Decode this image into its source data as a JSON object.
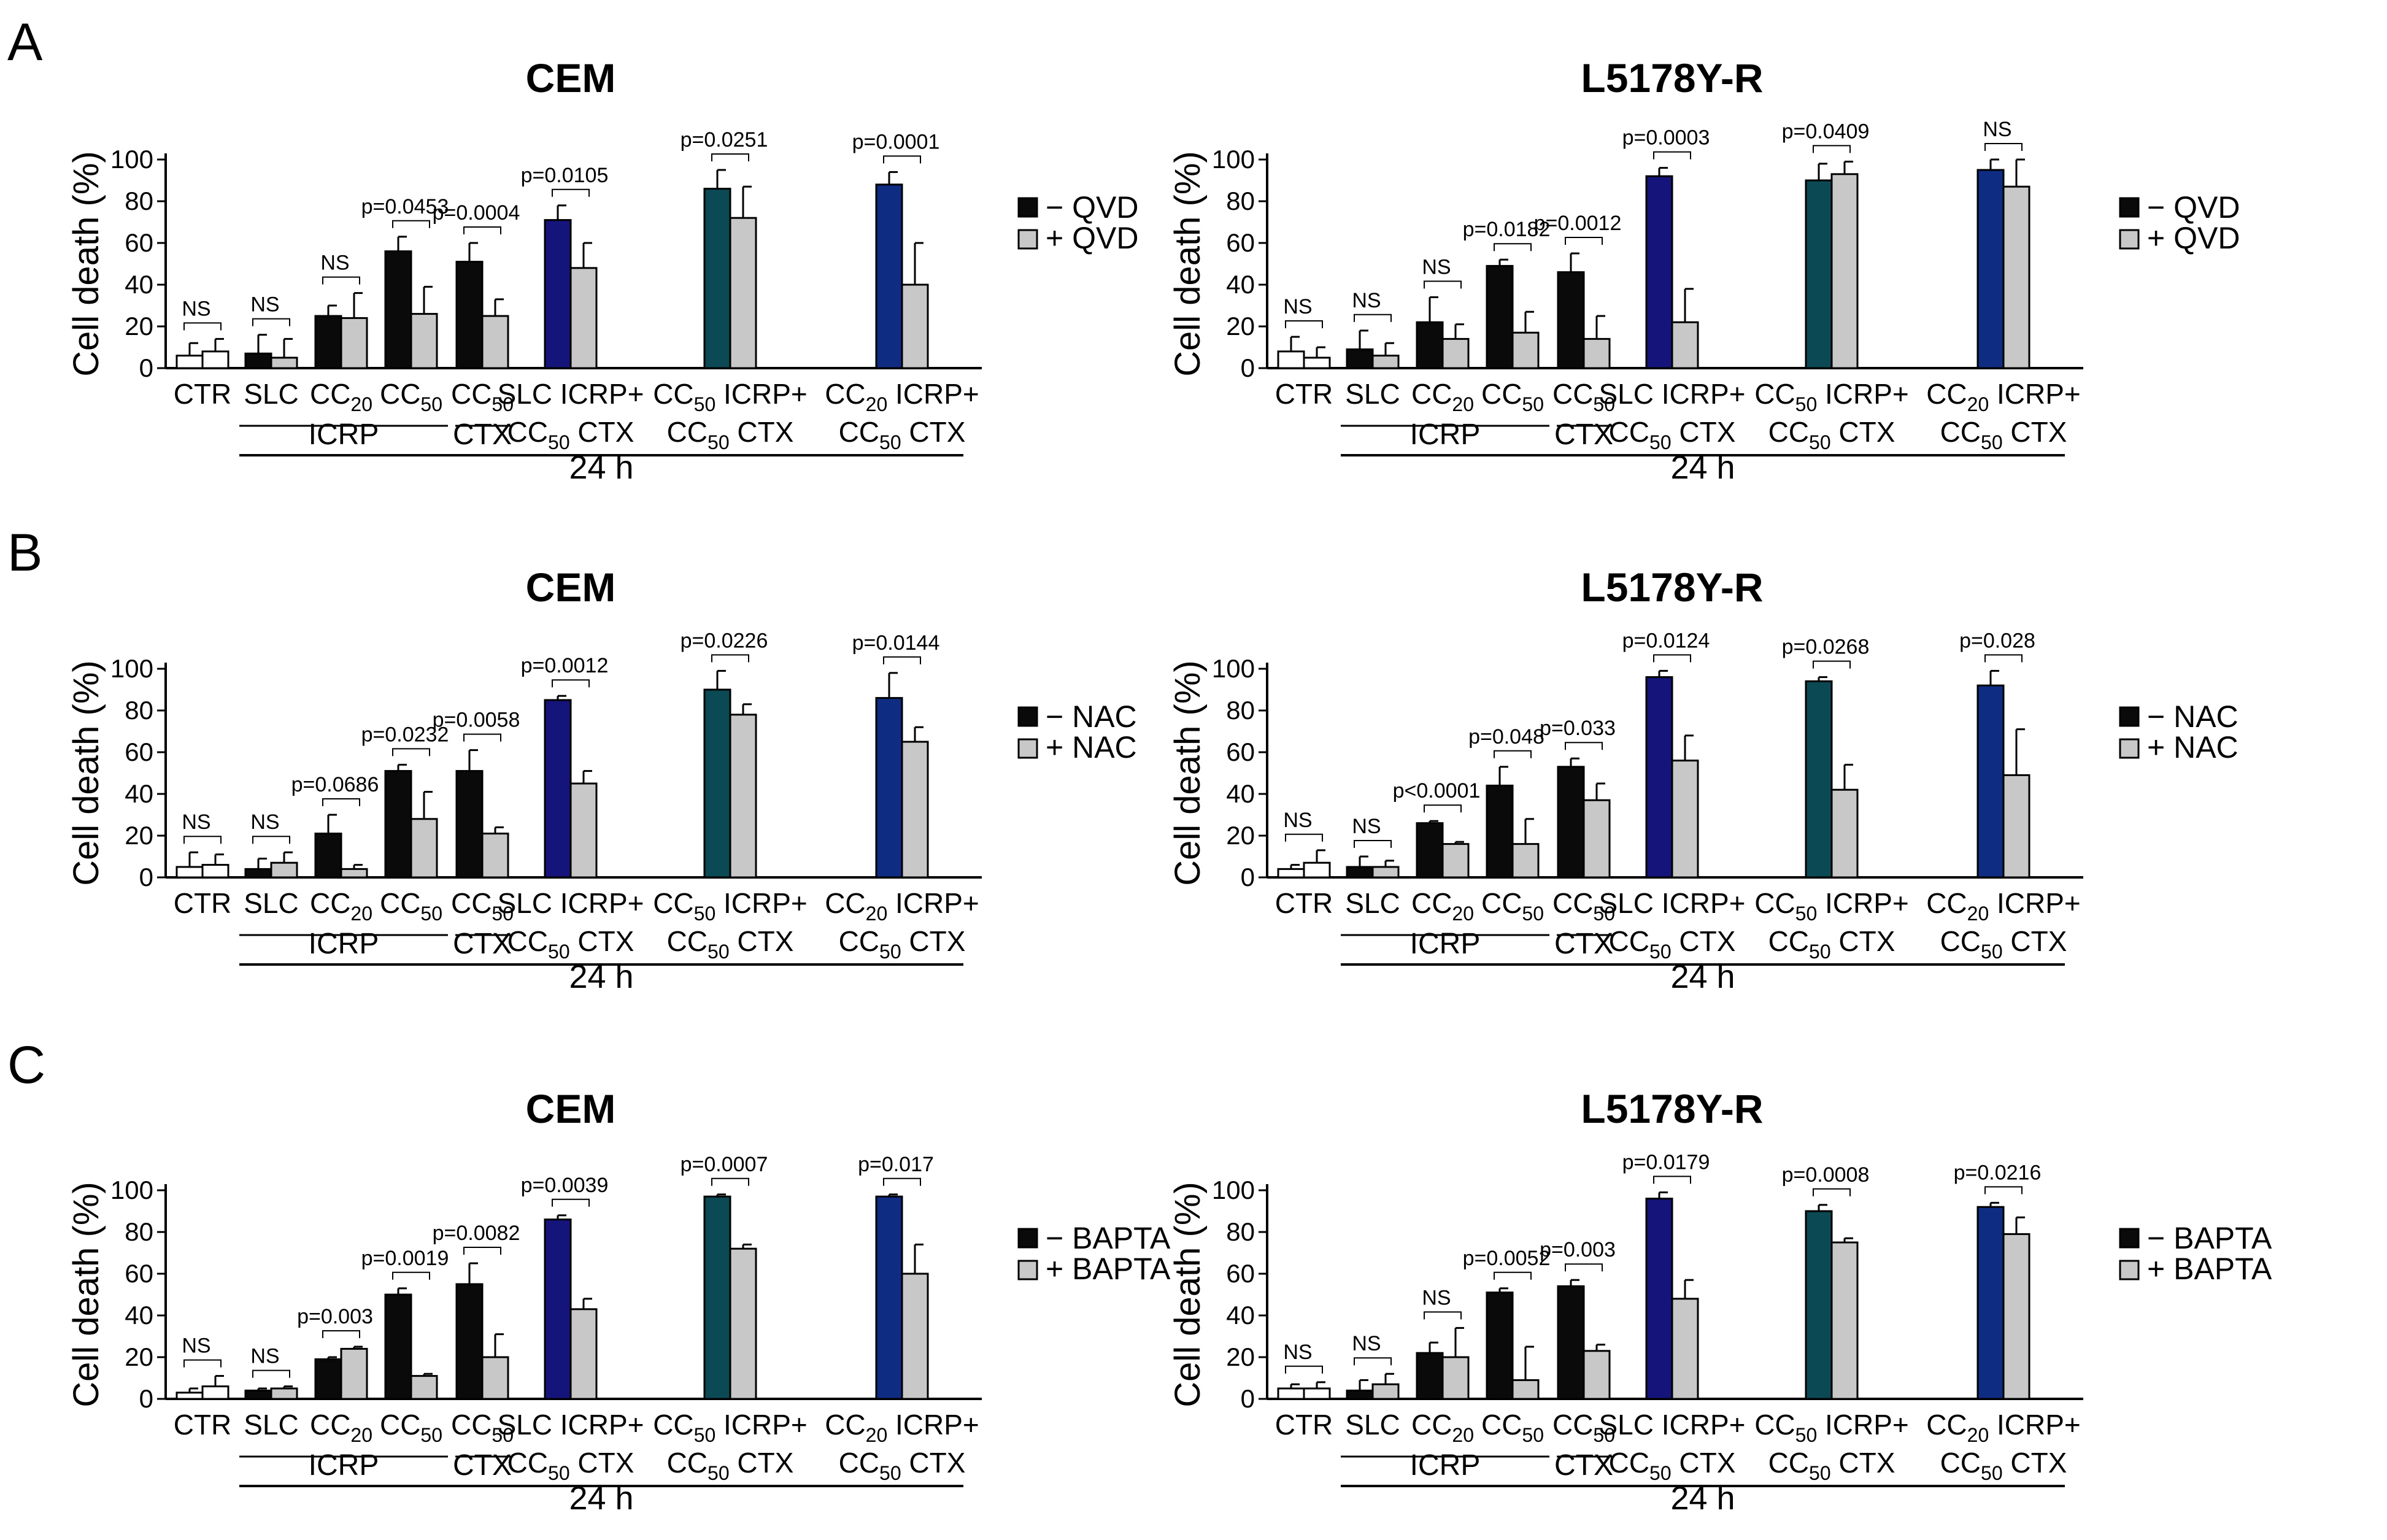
{
  "figure_labels": [
    "A",
    "B",
    "C"
  ],
  "colors": {
    "ctr": "#ffffff",
    "black": "#0a0a0a",
    "gray": "#c8c8c8",
    "slc": "#14147a",
    "cc50ctx": "#0b4a55",
    "cc20ctx": "#0d2c82"
  },
  "chart_data": [
    {
      "id": "A-CEM",
      "type": "bar",
      "row": "A",
      "title": "CEM",
      "ylabel": "Cell death (%)",
      "ylim": [
        0,
        100
      ],
      "yticks": [
        0,
        20,
        40,
        60,
        80,
        100
      ],
      "series": [
        {
          "name": "− QVD",
          "values": [
            6,
            7,
            25,
            56,
            51,
            71,
            86,
            88
          ],
          "errors": [
            6,
            9,
            5,
            7,
            9,
            7,
            9,
            6
          ]
        },
        {
          "name": "+ QVD",
          "values": [
            8,
            5,
            24,
            26,
            25,
            48,
            72,
            40
          ],
          "errors": [
            6,
            9,
            12,
            13,
            8,
            12,
            15,
            20
          ]
        }
      ],
      "first_bar_colors": [
        "ctr",
        "black",
        "black",
        "black",
        "black",
        "slc",
        "cc50ctx",
        "cc20ctx"
      ],
      "second_bar_colors": [
        "ctr",
        "gray",
        "gray",
        "gray",
        "gray",
        "gray",
        "gray",
        "gray"
      ],
      "annotations": [
        "NS",
        "NS",
        "NS",
        "p=0.0453",
        "p=0.0004",
        "p=0.0105",
        "p=0.0251",
        "p=0.0001"
      ],
      "legend": {
        "minus": "− QVD",
        "plus": "+ QVD"
      },
      "xlabels": {
        "ctr": "CTR",
        "slc": "SLC",
        "cc20": "CC",
        "cc20_sub": "20",
        "cc50": "CC",
        "cc50_sub": "50",
        "ctx_top": "CC",
        "ctx_top_sub": "50",
        "icrp": "ICRP",
        "ctx": "CTX",
        "c1_top": "SLC ICRP+",
        "c1_bot": "CC",
        "c1_bot_sub": "50",
        "c1_bot_rest": " CTX",
        "c2_top_a": "CC",
        "c2_top_a_sub": "50",
        "c2_top_b": " ICRP+",
        "c2_bot": "CC",
        "c2_bot_sub": "50",
        "c2_bot_rest": " CTX",
        "c3_top_a": "CC",
        "c3_top_a_sub": "20",
        "c3_top_b": " ICRP+",
        "c3_bot": "CC",
        "c3_bot_sub": "50",
        "c3_bot_rest": " CTX",
        "time": "24 h"
      }
    },
    {
      "id": "A-L5178Y-R",
      "type": "bar",
      "row": "A",
      "title": "L5178Y-R",
      "ylabel": "Cell death (%)",
      "ylim": [
        0,
        100
      ],
      "yticks": [
        0,
        20,
        40,
        60,
        80,
        100
      ],
      "series": [
        {
          "name": "− QVD",
          "values": [
            8,
            9,
            22,
            49,
            46,
            92,
            90,
            95
          ],
          "errors": [
            7,
            9,
            12,
            3,
            9,
            4,
            8,
            5
          ]
        },
        {
          "name": "+ QVD",
          "values": [
            5,
            6,
            14,
            17,
            14,
            22,
            93,
            87
          ],
          "errors": [
            5,
            6,
            7,
            10,
            11,
            16,
            6,
            15
          ]
        }
      ],
      "first_bar_colors": [
        "ctr",
        "black",
        "black",
        "black",
        "black",
        "slc",
        "cc50ctx",
        "cc20ctx"
      ],
      "second_bar_colors": [
        "ctr",
        "gray",
        "gray",
        "gray",
        "gray",
        "gray",
        "gray",
        "gray"
      ],
      "annotations": [
        "NS",
        "NS",
        "NS",
        "p=0.0182",
        "p=0.0012",
        "p=0.0003",
        "p=0.0409",
        "NS"
      ],
      "legend": {
        "minus": "− QVD",
        "plus": "+ QVD"
      },
      "xlabels": {
        "ctr": "CTR",
        "slc": "SLC",
        "cc20": "CC",
        "cc20_sub": "20",
        "cc50": "CC",
        "cc50_sub": "50",
        "ctx_top": "CC",
        "ctx_top_sub": "50",
        "icrp": "ICRP",
        "ctx": "CTX",
        "c1_top": "SLC ICRP+",
        "c1_bot": "CC",
        "c1_bot_sub": "50",
        "c1_bot_rest": " CTX",
        "c2_top_a": "CC",
        "c2_top_a_sub": "50",
        "c2_top_b": " ICRP+",
        "c2_bot": "CC",
        "c2_bot_sub": "50",
        "c2_bot_rest": " CTX",
        "c3_top_a": "CC",
        "c3_top_a_sub": "20",
        "c3_top_b": " ICRP+",
        "c3_bot": "CC",
        "c3_bot_sub": "50",
        "c3_bot_rest": " CTX",
        "time": "24 h"
      }
    },
    {
      "id": "B-CEM",
      "type": "bar",
      "row": "B",
      "title": "CEM",
      "ylabel": "Cell death (%)",
      "ylim": [
        0,
        100
      ],
      "yticks": [
        0,
        20,
        40,
        60,
        80,
        100
      ],
      "series": [
        {
          "name": "− NAC",
          "values": [
            5,
            4,
            21,
            51,
            51,
            85,
            90,
            86
          ],
          "errors": [
            7,
            5,
            9,
            3,
            10,
            2,
            9,
            12
          ]
        },
        {
          "name": "+ NAC",
          "values": [
            6,
            7,
            4,
            28,
            21,
            45,
            78,
            65
          ],
          "errors": [
            5,
            5,
            2,
            13,
            3,
            6,
            5,
            7
          ]
        }
      ],
      "first_bar_colors": [
        "ctr",
        "black",
        "black",
        "black",
        "black",
        "slc",
        "cc50ctx",
        "cc20ctx"
      ],
      "second_bar_colors": [
        "ctr",
        "gray",
        "gray",
        "gray",
        "gray",
        "gray",
        "gray",
        "gray"
      ],
      "annotations": [
        "NS",
        "NS",
        "p=0.0686",
        "p=0.0232",
        "p=0.0058",
        "p=0.0012",
        "p=0.0226",
        "p=0.0144"
      ],
      "legend": {
        "minus": "− NAC",
        "plus": "+ NAC"
      },
      "xlabels": {
        "ctr": "CTR",
        "slc": "SLC",
        "cc20": "CC",
        "cc20_sub": "20",
        "cc50": "CC",
        "cc50_sub": "50",
        "ctx_top": "CC",
        "ctx_top_sub": "50",
        "icrp": "ICRP",
        "ctx": "CTX",
        "c1_top": "SLC ICRP+",
        "c1_bot": "CC",
        "c1_bot_sub": "50",
        "c1_bot_rest": " CTX",
        "c2_top_a": "CC",
        "c2_top_a_sub": "50",
        "c2_top_b": " ICRP+",
        "c2_bot": "CC",
        "c2_bot_sub": "50",
        "c2_bot_rest": " CTX",
        "c3_top_a": "CC",
        "c3_top_a_sub": "20",
        "c3_top_b": " ICRP+",
        "c3_bot": "CC",
        "c3_bot_sub": "50",
        "c3_bot_rest": " CTX",
        "time": "24 h"
      }
    },
    {
      "id": "B-L5178Y-R",
      "type": "bar",
      "row": "B",
      "title": "L5178Y-R",
      "ylabel": "Cell death (%)",
      "ylim": [
        0,
        100
      ],
      "yticks": [
        0,
        20,
        40,
        60,
        80,
        100
      ],
      "series": [
        {
          "name": "− NAC",
          "values": [
            4,
            5,
            26,
            44,
            53,
            96,
            94,
            92
          ],
          "errors": [
            2,
            5,
            1,
            9,
            4,
            3,
            2,
            7
          ]
        },
        {
          "name": "+ NAC",
          "values": [
            7,
            5,
            16,
            16,
            37,
            56,
            42,
            49
          ],
          "errors": [
            6,
            3,
            1,
            12,
            8,
            12,
            12,
            22
          ]
        }
      ],
      "first_bar_colors": [
        "ctr",
        "black",
        "black",
        "black",
        "black",
        "slc",
        "cc50ctx",
        "cc20ctx"
      ],
      "second_bar_colors": [
        "ctr",
        "gray",
        "gray",
        "gray",
        "gray",
        "gray",
        "gray",
        "gray"
      ],
      "annotations": [
        "NS",
        "NS",
        "p<0.0001",
        "p=0.048",
        "p=0.033",
        "p=0.0124",
        "p=0.0268",
        "p=0.028"
      ],
      "legend": {
        "minus": "− NAC",
        "plus": "+ NAC"
      },
      "xlabels": {
        "ctr": "CTR",
        "slc": "SLC",
        "cc20": "CC",
        "cc20_sub": "20",
        "cc50": "CC",
        "cc50_sub": "50",
        "ctx_top": "CC",
        "ctx_top_sub": "50",
        "icrp": "ICRP",
        "ctx": "CTX",
        "c1_top": "SLC ICRP+",
        "c1_bot": "CC",
        "c1_bot_sub": "50",
        "c1_bot_rest": " CTX",
        "c2_top_a": "CC",
        "c2_top_a_sub": "50",
        "c2_top_b": " ICRP+",
        "c2_bot": "CC",
        "c2_bot_sub": "50",
        "c2_bot_rest": " CTX",
        "c3_top_a": "CC",
        "c3_top_a_sub": "20",
        "c3_top_b": " ICRP+",
        "c3_bot": "CC",
        "c3_bot_sub": "50",
        "c3_bot_rest": " CTX",
        "time": "24 h"
      }
    },
    {
      "id": "C-CEM",
      "type": "bar",
      "row": "C",
      "title": "CEM",
      "ylabel": "Cell death (%)",
      "ylim": [
        0,
        100
      ],
      "yticks": [
        0,
        20,
        40,
        60,
        80,
        100
      ],
      "series": [
        {
          "name": "− BAPTA",
          "values": [
            3,
            4,
            19,
            50,
            55,
            86,
            97,
            97
          ],
          "errors": [
            2,
            1,
            1,
            3,
            10,
            2,
            1,
            1
          ]
        },
        {
          "name": "+ BAPTA",
          "values": [
            6,
            5,
            24,
            11,
            20,
            43,
            72,
            60
          ],
          "errors": [
            5,
            1,
            1,
            1,
            11,
            5,
            2,
            14
          ]
        }
      ],
      "first_bar_colors": [
        "ctr",
        "black",
        "black",
        "black",
        "black",
        "slc",
        "cc50ctx",
        "cc20ctx"
      ],
      "second_bar_colors": [
        "ctr",
        "gray",
        "gray",
        "gray",
        "gray",
        "gray",
        "gray",
        "gray"
      ],
      "annotations": [
        "NS",
        "NS",
        "p=0.003",
        "p=0.0019",
        "p=0.0082",
        "p=0.0039",
        "p=0.0007",
        "p=0.017"
      ],
      "legend": {
        "minus": "− BAPTA",
        "plus": "+ BAPTA"
      },
      "xlabels": {
        "ctr": "CTR",
        "slc": "SLC",
        "cc20": "CC",
        "cc20_sub": "20",
        "cc50": "CC",
        "cc50_sub": "50",
        "ctx_top": "CC",
        "ctx_top_sub": "50",
        "icrp": "ICRP",
        "ctx": "CTX",
        "c1_top": "SLC ICRP+",
        "c1_bot": "CC",
        "c1_bot_sub": "50",
        "c1_bot_rest": " CTX",
        "c2_top_a": "CC",
        "c2_top_a_sub": "50",
        "c2_top_b": " ICRP+",
        "c2_bot": "CC",
        "c2_bot_sub": "50",
        "c2_bot_rest": " CTX",
        "c3_top_a": "CC",
        "c3_top_a_sub": "20",
        "c3_top_b": " ICRP+",
        "c3_bot": "CC",
        "c3_bot_sub": "50",
        "c3_bot_rest": " CTX",
        "time": "24 h"
      }
    },
    {
      "id": "C-L5178Y-R",
      "type": "bar",
      "row": "C",
      "title": "L5178Y-R",
      "ylabel": "Cell death (%)",
      "ylim": [
        0,
        100
      ],
      "yticks": [
        0,
        20,
        40,
        60,
        80,
        100
      ],
      "series": [
        {
          "name": "− BAPTA",
          "values": [
            5,
            4,
            22,
            51,
            54,
            96,
            90,
            92
          ],
          "errors": [
            2,
            5,
            5,
            2,
            3,
            3,
            3,
            2
          ]
        },
        {
          "name": "+ BAPTA",
          "values": [
            5,
            7,
            20,
            9,
            23,
            48,
            75,
            79
          ],
          "errors": [
            3,
            5,
            14,
            16,
            3,
            9,
            2,
            8
          ]
        }
      ],
      "first_bar_colors": [
        "ctr",
        "black",
        "black",
        "black",
        "black",
        "slc",
        "cc50ctx",
        "cc20ctx"
      ],
      "second_bar_colors": [
        "ctr",
        "gray",
        "gray",
        "gray",
        "gray",
        "gray",
        "gray",
        "gray"
      ],
      "annotations": [
        "NS",
        "NS",
        "NS",
        "p=0.0052",
        "p=0.003",
        "p=0.0179",
        "p=0.0008",
        "p=0.0216"
      ],
      "legend": {
        "minus": "− BAPTA",
        "plus": "+ BAPTA"
      },
      "xlabels": {
        "ctr": "CTR",
        "slc": "SLC",
        "cc20": "CC",
        "cc20_sub": "20",
        "cc50": "CC",
        "cc50_sub": "50",
        "ctx_top": "CC",
        "ctx_top_sub": "50",
        "icrp": "ICRP",
        "ctx": "CTX",
        "c1_top": "SLC ICRP+",
        "c1_bot": "CC",
        "c1_bot_sub": "50",
        "c1_bot_rest": " CTX",
        "c2_top_a": "CC",
        "c2_top_a_sub": "50",
        "c2_top_b": " ICRP+",
        "c2_bot": "CC",
        "c2_bot_sub": "50",
        "c2_bot_rest": " CTX",
        "c3_top_a": "CC",
        "c3_top_a_sub": "20",
        "c3_top_b": " ICRP+",
        "c3_bot": "CC",
        "c3_bot_sub": "50",
        "c3_bot_rest": " CTX",
        "time": "24 h"
      }
    }
  ]
}
